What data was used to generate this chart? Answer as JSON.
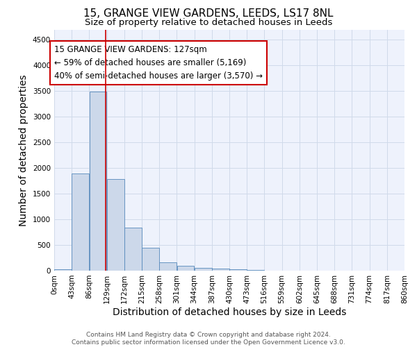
{
  "title": "15, GRANGE VIEW GARDENS, LEEDS, LS17 8NL",
  "subtitle": "Size of property relative to detached houses in Leeds",
  "xlabel": "Distribution of detached houses by size in Leeds",
  "ylabel": "Number of detached properties",
  "annotation_line1": "15 GRANGE VIEW GARDENS: 127sqm",
  "annotation_line2": "← 59% of detached houses are smaller (5,169)",
  "annotation_line3": "40% of semi-detached houses are larger (3,570) →",
  "footer_line1": "Contains HM Land Registry data © Crown copyright and database right 2024.",
  "footer_line2": "Contains public sector information licensed under the Open Government Licence v3.0.",
  "bar_left_edges": [
    0,
    43,
    86,
    129,
    172,
    215,
    258,
    301,
    344,
    387,
    430,
    473,
    516,
    559,
    602,
    645,
    688,
    731,
    774,
    817
  ],
  "bar_widths": [
    43,
    43,
    43,
    43,
    43,
    43,
    43,
    43,
    43,
    43,
    43,
    43,
    43,
    43,
    43,
    43,
    43,
    43,
    43,
    43
  ],
  "bar_heights": [
    30,
    1900,
    3490,
    1780,
    840,
    450,
    160,
    95,
    60,
    40,
    30,
    20,
    0,
    0,
    0,
    0,
    0,
    0,
    0,
    0
  ],
  "bar_color": "#ccd8ea",
  "bar_edgecolor": "#5588bb",
  "marker_x": 127,
  "marker_color": "#cc0000",
  "ylim": [
    0,
    4700
  ],
  "xlim": [
    0,
    860
  ],
  "tick_positions": [
    0,
    43,
    86,
    129,
    172,
    215,
    258,
    301,
    344,
    387,
    430,
    473,
    516,
    559,
    602,
    645,
    688,
    731,
    774,
    817,
    860
  ],
  "tick_labels": [
    "0sqm",
    "43sqm",
    "86sqm",
    "129sqm",
    "172sqm",
    "215sqm",
    "258sqm",
    "301sqm",
    "344sqm",
    "387sqm",
    "430sqm",
    "473sqm",
    "516sqm",
    "559sqm",
    "602sqm",
    "645sqm",
    "688sqm",
    "731sqm",
    "774sqm",
    "817sqm",
    "860sqm"
  ],
  "ytick_positions": [
    0,
    500,
    1000,
    1500,
    2000,
    2500,
    3000,
    3500,
    4000,
    4500
  ],
  "grid_color": "#d0daea",
  "background_color": "#eef2fc",
  "title_fontsize": 11,
  "subtitle_fontsize": 9.5,
  "axis_label_fontsize": 10,
  "tick_fontsize": 7.5,
  "annotation_fontsize": 8.5,
  "footer_fontsize": 6.5
}
